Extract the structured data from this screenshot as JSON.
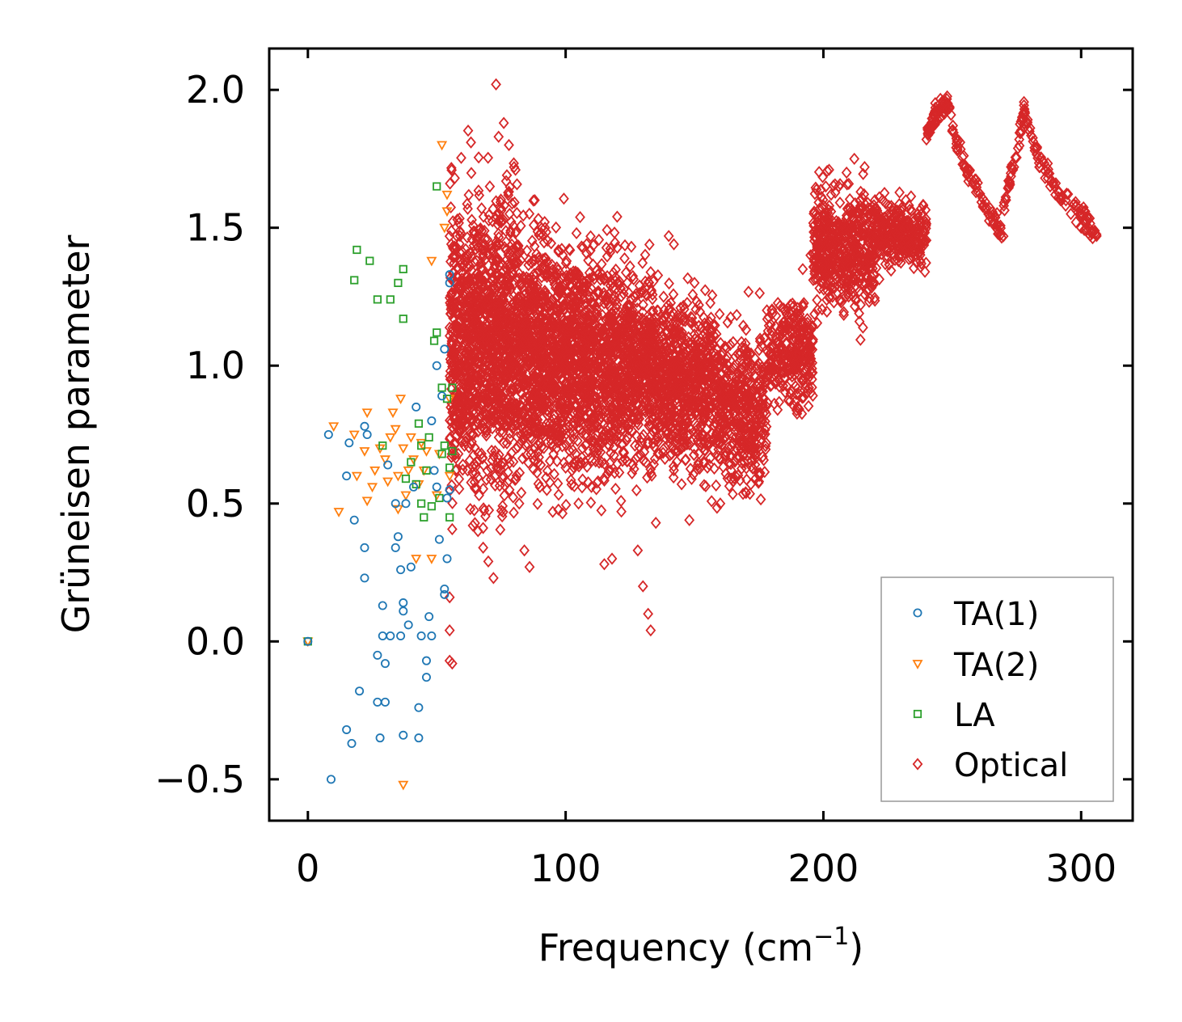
{
  "chart_data": {
    "type": "scatter",
    "title": "",
    "xlabel": "Frequency (cm",
    "xlabel_sup": "−1",
    "xlabel_end": ")",
    "ylabel": "Grüneisen parameter",
    "xlim": [
      -15,
      320
    ],
    "ylim": [
      -0.65,
      2.15
    ],
    "xticks": [
      0,
      100,
      200,
      300
    ],
    "xtick_labels": [
      "0",
      "100",
      "200",
      "300"
    ],
    "yticks": [
      -0.5,
      0.0,
      0.5,
      1.0,
      1.5,
      2.0
    ],
    "ytick_labels": [
      "−0.5",
      "0.0",
      "0.5",
      "1.0",
      "1.5",
      "2.0"
    ],
    "grid": false,
    "legend_position": "bottom-right",
    "series": [
      {
        "name": "TA(1)",
        "marker": "circle",
        "color": "#1f77b4",
        "points": [
          [
            0,
            0
          ],
          [
            8,
            0.75
          ],
          [
            9,
            -0.5
          ],
          [
            15,
            0.6
          ],
          [
            15,
            -0.32
          ],
          [
            16,
            0.72
          ],
          [
            17,
            -0.37
          ],
          [
            18,
            0.44
          ],
          [
            20,
            -0.18
          ],
          [
            22,
            0.78
          ],
          [
            22,
            0.34
          ],
          [
            22,
            0.23
          ],
          [
            23,
            0.75
          ],
          [
            27,
            -0.22
          ],
          [
            27,
            -0.05
          ],
          [
            28,
            -0.35
          ],
          [
            29,
            0.13
          ],
          [
            29,
            0.02
          ],
          [
            30,
            -0.22
          ],
          [
            30,
            -0.08
          ],
          [
            31,
            0.64
          ],
          [
            32,
            0.02
          ],
          [
            34,
            0.34
          ],
          [
            34,
            0.5
          ],
          [
            35,
            0.38
          ],
          [
            36,
            0.02
          ],
          [
            36,
            0.26
          ],
          [
            37,
            0.11
          ],
          [
            37,
            0.14
          ],
          [
            37,
            -0.34
          ],
          [
            38,
            0.5
          ],
          [
            39,
            0.06
          ],
          [
            40,
            0.27
          ],
          [
            41,
            0.56
          ],
          [
            42,
            0.85
          ],
          [
            43,
            -0.35
          ],
          [
            43,
            -0.24
          ],
          [
            44,
            0.02
          ],
          [
            46,
            -0.07
          ],
          [
            46,
            -0.13
          ],
          [
            47,
            0.09
          ],
          [
            48,
            0.8
          ],
          [
            48,
            0.02
          ],
          [
            49,
            0.62
          ],
          [
            50,
            1.0
          ],
          [
            50,
            0.56
          ],
          [
            51,
            0.37
          ],
          [
            52,
            0.89
          ],
          [
            53,
            1.06
          ],
          [
            53,
            0.17
          ],
          [
            53,
            0.19
          ],
          [
            54,
            0.3
          ],
          [
            54,
            0.52
          ],
          [
            55,
            1.3
          ],
          [
            55,
            1.33
          ],
          [
            55,
            0.55
          ]
        ]
      },
      {
        "name": "TA(2)",
        "marker": "triangle-down",
        "color": "#ff7f0e",
        "points": [
          [
            0,
            0
          ],
          [
            10,
            0.78
          ],
          [
            12,
            0.47
          ],
          [
            18,
            0.75
          ],
          [
            19,
            0.6
          ],
          [
            22,
            0.69
          ],
          [
            23,
            0.83
          ],
          [
            23,
            0.51
          ],
          [
            25,
            0.56
          ],
          [
            26,
            0.62
          ],
          [
            28,
            0.7
          ],
          [
            30,
            0.66
          ],
          [
            31,
            0.58
          ],
          [
            32,
            0.74
          ],
          [
            33,
            0.83
          ],
          [
            34,
            0.77
          ],
          [
            35,
            0.6
          ],
          [
            35,
            0.48
          ],
          [
            36,
            0.88
          ],
          [
            37,
            -0.52
          ],
          [
            37,
            0.7
          ],
          [
            38,
            0.53
          ],
          [
            39,
            0.62
          ],
          [
            40,
            0.74
          ],
          [
            41,
            0.66
          ],
          [
            42,
            0.3
          ],
          [
            43,
            0.57
          ],
          [
            44,
            0.72
          ],
          [
            45,
            0.62
          ],
          [
            46,
            0.69
          ],
          [
            48,
            0.3
          ],
          [
            48,
            1.38
          ],
          [
            50,
            0.53
          ],
          [
            51,
            0.68
          ],
          [
            52,
            1.8
          ],
          [
            53,
            1.5
          ],
          [
            54,
            1.62
          ],
          [
            54,
            1.56
          ],
          [
            55,
            0.6
          ],
          [
            55,
            0.88
          ]
        ]
      },
      {
        "name": "LA",
        "marker": "square",
        "color": "#2ca02c",
        "points": [
          [
            0,
            0
          ],
          [
            18,
            1.31
          ],
          [
            19,
            1.42
          ],
          [
            24,
            1.38
          ],
          [
            27,
            1.24
          ],
          [
            29,
            0.71
          ],
          [
            32,
            1.24
          ],
          [
            35,
            1.3
          ],
          [
            37,
            1.17
          ],
          [
            37,
            1.35
          ],
          [
            38,
            0.59
          ],
          [
            40,
            0.65
          ],
          [
            42,
            0.57
          ],
          [
            43,
            0.79
          ],
          [
            44,
            0.5
          ],
          [
            44,
            0.71
          ],
          [
            45,
            0.45
          ],
          [
            46,
            0.62
          ],
          [
            47,
            0.74
          ],
          [
            48,
            0.49
          ],
          [
            49,
            1.09
          ],
          [
            50,
            1.65
          ],
          [
            50,
            1.12
          ],
          [
            51,
            0.52
          ],
          [
            52,
            0.92
          ],
          [
            52,
            0.68
          ],
          [
            53,
            0.71
          ],
          [
            54,
            0.88
          ],
          [
            55,
            0.63
          ],
          [
            55,
            0.45
          ],
          [
            56,
            0.92
          ],
          [
            56,
            0.69
          ]
        ]
      },
      {
        "name": "Optical",
        "marker": "diamond",
        "color": "#d62728",
        "points": [
          [
            55,
            0.16
          ],
          [
            55,
            0.04
          ],
          [
            55,
            -0.07
          ],
          [
            56,
            -0.08
          ],
          [
            57,
            1.68
          ],
          [
            58,
            1.53
          ],
          [
            59,
            1.47
          ],
          [
            60,
            1.36
          ],
          [
            62,
            0.62
          ],
          [
            63,
            0.48
          ],
          [
            64,
            0.42
          ],
          [
            66,
            0.4
          ],
          [
            68,
            0.34
          ],
          [
            70,
            0.29
          ],
          [
            72,
            0.23
          ],
          [
            73,
            2.02
          ],
          [
            74,
            1.83
          ],
          [
            76,
            1.88
          ],
          [
            78,
            1.8
          ],
          [
            80,
            1.72
          ],
          [
            82,
            0.5
          ],
          [
            84,
            0.33
          ],
          [
            86,
            0.27
          ],
          [
            88,
            1.6
          ],
          [
            90,
            0.56
          ],
          [
            92,
            1.5
          ],
          [
            95,
            0.47
          ],
          [
            100,
            0.63
          ],
          [
            105,
            0.5
          ],
          [
            110,
            0.56
          ],
          [
            115,
            0.28
          ],
          [
            118,
            0.3
          ],
          [
            120,
            1.54
          ],
          [
            125,
            1.36
          ],
          [
            128,
            0.33
          ],
          [
            130,
            0.2
          ],
          [
            132,
            0.1
          ],
          [
            133,
            0.04
          ],
          [
            135,
            0.43
          ],
          [
            138,
            1.25
          ],
          [
            140,
            1.47
          ],
          [
            142,
            1.44
          ],
          [
            145,
            0.57
          ],
          [
            148,
            0.44
          ],
          [
            150,
            1.3
          ],
          [
            155,
            0.63
          ],
          [
            160,
            0.5
          ],
          [
            165,
            0.58
          ],
          [
            170,
            1.13
          ],
          [
            175,
            0.58
          ],
          [
            180,
            1.2
          ],
          [
            185,
            1.2
          ],
          [
            190,
            0.85
          ],
          [
            192,
            1.35
          ],
          [
            195,
            1.4
          ],
          [
            198,
            1.5
          ],
          [
            200,
            1.55
          ],
          [
            203,
            1.62
          ],
          [
            206,
            1.65
          ],
          [
            209,
            1.7
          ],
          [
            212,
            1.75
          ],
          [
            214,
            1.16
          ],
          [
            216,
            1.72
          ],
          [
            218,
            1.55
          ],
          [
            220,
            1.6
          ],
          [
            222,
            1.45
          ],
          [
            225,
            1.5
          ],
          [
            228,
            1.42
          ],
          [
            230,
            1.55
          ],
          [
            232,
            1.6
          ],
          [
            234,
            1.5
          ],
          [
            236,
            1.47
          ],
          [
            238,
            1.37
          ],
          [
            240,
            1.82
          ],
          [
            242,
            1.88
          ],
          [
            244,
            1.92
          ],
          [
            246,
            1.94
          ],
          [
            248,
            1.93
          ],
          [
            250,
            1.85
          ],
          [
            252,
            1.78
          ],
          [
            254,
            1.73
          ],
          [
            256,
            1.7
          ],
          [
            258,
            1.66
          ],
          [
            260,
            1.63
          ],
          [
            262,
            1.58
          ],
          [
            264,
            1.55
          ],
          [
            266,
            1.52
          ],
          [
            268,
            1.48
          ],
          [
            270,
            1.58
          ],
          [
            272,
            1.65
          ],
          [
            274,
            1.72
          ],
          [
            276,
            1.82
          ],
          [
            278,
            1.93
          ],
          [
            280,
            1.85
          ],
          [
            282,
            1.78
          ],
          [
            284,
            1.72
          ],
          [
            286,
            1.68
          ],
          [
            288,
            1.65
          ],
          [
            290,
            1.62
          ],
          [
            292,
            1.6
          ],
          [
            294,
            1.58
          ],
          [
            296,
            1.55
          ],
          [
            298,
            1.52
          ],
          [
            300,
            1.5
          ],
          [
            302,
            1.5
          ],
          [
            304,
            1.48
          ],
          [
            306,
            1.47
          ]
        ]
      }
    ],
    "optical_cloud": [
      {
        "x0": 55,
        "x1": 82,
        "ymin": 0.55,
        "ymax": 1.6,
        "n": 1300
      },
      {
        "x0": 82,
        "x1": 110,
        "ymin": 0.6,
        "ymax": 1.48,
        "n": 1200
      },
      {
        "x0": 110,
        "x1": 135,
        "ymin": 0.6,
        "ymax": 1.38,
        "n": 900
      },
      {
        "x0": 135,
        "x1": 158,
        "ymin": 0.62,
        "ymax": 1.25,
        "n": 650
      },
      {
        "x0": 158,
        "x1": 178,
        "ymin": 0.55,
        "ymax": 1.14,
        "n": 450
      },
      {
        "x0": 178,
        "x1": 196,
        "ymin": 0.85,
        "ymax": 1.25,
        "n": 300
      },
      {
        "x0": 196,
        "x1": 220,
        "ymin": 1.2,
        "ymax": 1.65,
        "n": 500
      },
      {
        "x0": 220,
        "x1": 240,
        "ymin": 1.35,
        "ymax": 1.6,
        "n": 280
      }
    ],
    "optical_curves": [
      {
        "points": [
          [
            240,
            1.83
          ],
          [
            244,
            1.92
          ],
          [
            248,
            1.94
          ],
          [
            252,
            1.8
          ],
          [
            258,
            1.68
          ],
          [
            264,
            1.56
          ],
          [
            270,
            1.48
          ]
        ],
        "width": 0.06,
        "n": 120
      },
      {
        "points": [
          [
            270,
            1.58
          ],
          [
            276,
            1.82
          ],
          [
            278,
            1.93
          ],
          [
            284,
            1.74
          ],
          [
            292,
            1.62
          ],
          [
            300,
            1.55
          ],
          [
            306,
            1.47
          ]
        ],
        "width": 0.06,
        "n": 120
      }
    ]
  }
}
